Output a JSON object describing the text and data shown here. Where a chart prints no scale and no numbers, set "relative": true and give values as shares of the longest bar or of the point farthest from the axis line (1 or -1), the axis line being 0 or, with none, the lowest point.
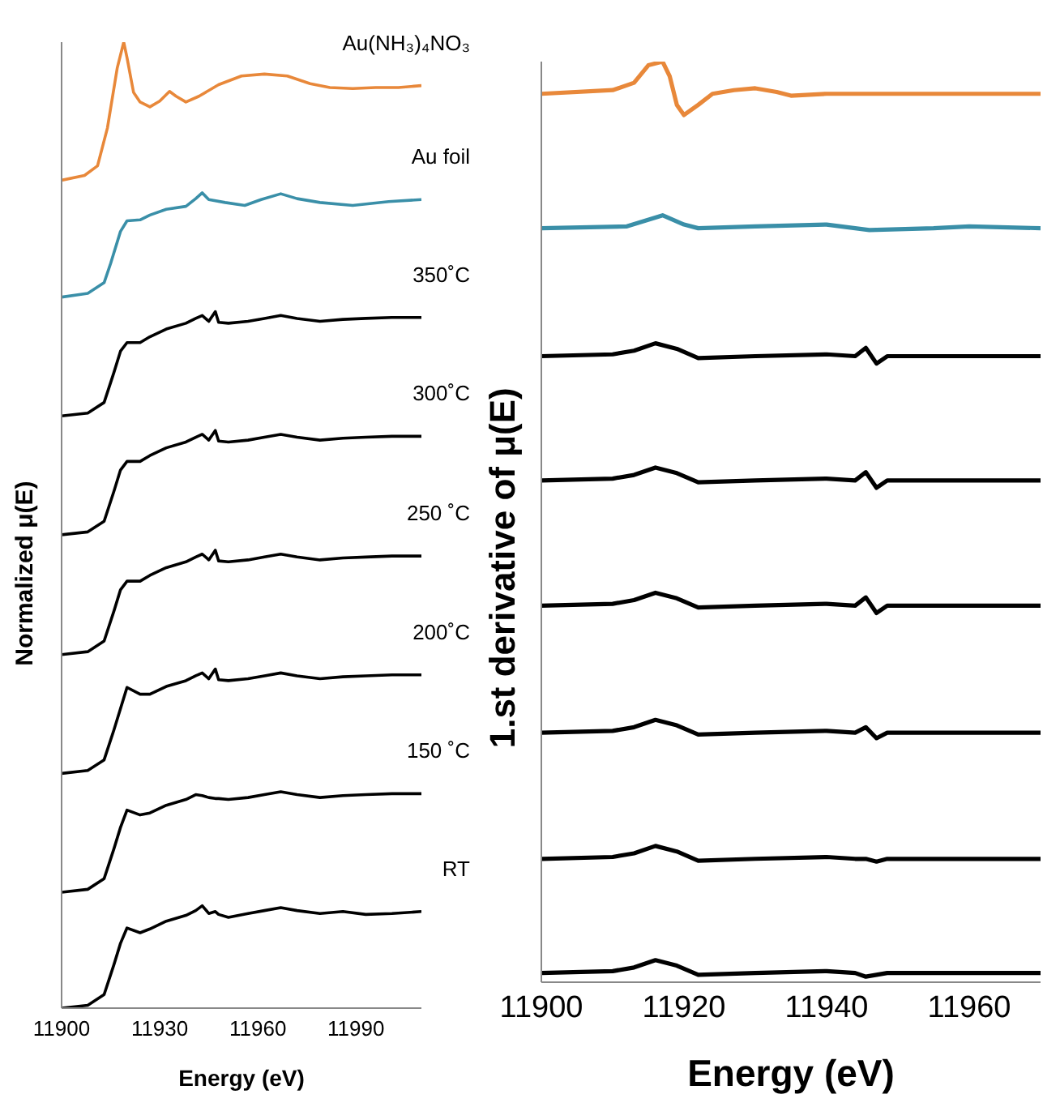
{
  "chart_data": [
    {
      "type": "line",
      "xlabel": "Energy (eV)",
      "ylabel": "Normalized μ(E)",
      "relative": true,
      "xlim": [
        11900,
        12010
      ],
      "xticks": [
        11900,
        11930,
        11960,
        11990
      ],
      "grid": false,
      "legend": false,
      "marker": "none",
      "line_style": "solid",
      "series": [
        {
          "name": "Au(NH₃)₄NO₃",
          "color": "#e8883a",
          "x": [
            11900,
            11907,
            11911,
            11914,
            11917,
            11919,
            11920,
            11922,
            11924,
            11927,
            11930,
            11933,
            11935,
            11938,
            11942,
            11948,
            11955,
            11962,
            11969,
            11976,
            11982,
            11989,
            11996,
            12003,
            12010
          ],
          "values": [
            0.857,
            0.862,
            0.872,
            0.911,
            0.973,
            1,
            0.984,
            0.948,
            0.938,
            0.933,
            0.939,
            0.949,
            0.944,
            0.938,
            0.944,
            0.956,
            0.965,
            0.967,
            0.965,
            0.957,
            0.953,
            0.952,
            0.953,
            0.953,
            0.955
          ]
        },
        {
          "name": "Au foil",
          "color": "#3a8fa8",
          "x": [
            11900,
            11908,
            11913,
            11915,
            11918,
            11920,
            11924,
            11927,
            11932,
            11938,
            11941,
            11943,
            11945,
            11950,
            11956,
            11961,
            11967,
            11972,
            11979,
            11989,
            12000,
            12010
          ],
          "values": [
            0.736,
            0.74,
            0.751,
            0.771,
            0.804,
            0.815,
            0.816,
            0.821,
            0.827,
            0.83,
            0.838,
            0.844,
            0.837,
            0.834,
            0.831,
            0.837,
            0.843,
            0.838,
            0.834,
            0.831,
            0.835,
            0.837
          ]
        },
        {
          "name": "350˚C",
          "color": "#000000",
          "x": [
            11900,
            11908,
            11913,
            11916,
            11918,
            11920,
            11924,
            11927,
            11932,
            11938,
            11941,
            11943,
            11945,
            11947,
            11948,
            11951,
            11957,
            11962,
            11967,
            11972,
            11979,
            11986,
            11993,
            12001,
            12010
          ],
          "values": [
            0.613,
            0.616,
            0.627,
            0.658,
            0.68,
            0.689,
            0.689,
            0.695,
            0.703,
            0.709,
            0.714,
            0.717,
            0.711,
            0.721,
            0.71,
            0.709,
            0.711,
            0.714,
            0.717,
            0.714,
            0.711,
            0.713,
            0.714,
            0.715,
            0.715
          ]
        },
        {
          "name": "300˚C",
          "color": "#000000",
          "x": [
            11900,
            11908,
            11913,
            11916,
            11918,
            11920,
            11924,
            11927,
            11932,
            11938,
            11941,
            11943,
            11945,
            11947,
            11948,
            11951,
            11957,
            11962,
            11967,
            11972,
            11979,
            11986,
            11993,
            12001,
            12010
          ],
          "values": [
            0.49,
            0.493,
            0.504,
            0.535,
            0.557,
            0.566,
            0.566,
            0.572,
            0.58,
            0.586,
            0.591,
            0.594,
            0.588,
            0.598,
            0.587,
            0.586,
            0.588,
            0.591,
            0.594,
            0.591,
            0.588,
            0.59,
            0.591,
            0.592,
            0.592
          ]
        },
        {
          "name": "250 ˚C",
          "color": "#000000",
          "x": [
            11900,
            11908,
            11913,
            11916,
            11918,
            11920,
            11924,
            11927,
            11932,
            11938,
            11941,
            11943,
            11945,
            11947,
            11948,
            11951,
            11957,
            11962,
            11967,
            11972,
            11979,
            11986,
            11993,
            12001,
            12010
          ],
          "values": [
            0.366,
            0.369,
            0.38,
            0.411,
            0.433,
            0.442,
            0.442,
            0.448,
            0.456,
            0.462,
            0.467,
            0.47,
            0.464,
            0.474,
            0.463,
            0.462,
            0.464,
            0.467,
            0.47,
            0.467,
            0.464,
            0.466,
            0.467,
            0.468,
            0.468
          ]
        },
        {
          "name": "200˚C",
          "color": "#000000",
          "x": [
            11900,
            11908,
            11913,
            11916,
            11918,
            11920,
            11924,
            11927,
            11932,
            11938,
            11941,
            11943,
            11945,
            11947,
            11948,
            11951,
            11957,
            11962,
            11967,
            11972,
            11979,
            11986,
            11993,
            12001,
            12010
          ],
          "values": [
            0.243,
            0.246,
            0.257,
            0.288,
            0.31,
            0.332,
            0.325,
            0.325,
            0.333,
            0.339,
            0.344,
            0.347,
            0.341,
            0.351,
            0.34,
            0.339,
            0.341,
            0.344,
            0.347,
            0.344,
            0.341,
            0.343,
            0.344,
            0.345,
            0.345
          ]
        },
        {
          "name": "150 ˚C",
          "color": "#000000",
          "x": [
            11900,
            11908,
            11913,
            11916,
            11918,
            11920,
            11924,
            11927,
            11932,
            11938,
            11941,
            11943,
            11945,
            11947,
            11948,
            11951,
            11957,
            11962,
            11967,
            11972,
            11979,
            11986,
            11993,
            12001,
            12010
          ],
          "values": [
            0.12,
            0.123,
            0.134,
            0.165,
            0.187,
            0.205,
            0.2,
            0.202,
            0.21,
            0.216,
            0.221,
            0.22,
            0.218,
            0.217,
            0.217,
            0.216,
            0.218,
            0.221,
            0.224,
            0.221,
            0.218,
            0.22,
            0.221,
            0.222,
            0.222
          ]
        },
        {
          "name": "RT",
          "color": "#000000",
          "x": [
            11900,
            11908,
            11913,
            11916,
            11918,
            11920,
            11924,
            11927,
            11932,
            11938,
            11941,
            11943,
            11945,
            11947,
            11948,
            11951,
            11957,
            11962,
            11967,
            11972,
            11979,
            11986,
            11993,
            12001,
            12010
          ],
          "values": [
            0,
            0.003,
            0.014,
            0.045,
            0.067,
            0.083,
            0.078,
            0.082,
            0.09,
            0.096,
            0.101,
            0.106,
            0.098,
            0.1,
            0.097,
            0.094,
            0.098,
            0.101,
            0.104,
            0.101,
            0.098,
            0.1,
            0.097,
            0.098,
            0.1
          ]
        }
      ]
    },
    {
      "type": "line",
      "xlabel": "Energy (eV)",
      "ylabel": "1.st derivative of μ(E)",
      "relative": true,
      "xlim": [
        11900,
        11970
      ],
      "xticks": [
        11900,
        11920,
        11940,
        11960
      ],
      "grid": false,
      "legend": false,
      "marker": "none",
      "line_style": "solid",
      "series": [
        {
          "color": "#e8883a",
          "x": [
            11900,
            11910,
            11913,
            11915,
            11917,
            11918,
            11919,
            11920,
            11922,
            11924,
            11927,
            11930,
            11933,
            11935,
            11940,
            11950,
            11960,
            11970
          ],
          "values": [
            0.965,
            0.969,
            0.977,
            0.996,
            1,
            0.984,
            0.953,
            0.942,
            0.953,
            0.965,
            0.969,
            0.971,
            0.967,
            0.963,
            0.965,
            0.965,
            0.965,
            0.965
          ]
        },
        {
          "color": "#3a8fa8",
          "x": [
            11900,
            11912,
            11917,
            11920,
            11922,
            11930,
            11940,
            11946,
            11955,
            11960,
            11970
          ],
          "values": [
            0.819,
            0.821,
            0.833,
            0.823,
            0.819,
            0.821,
            0.823,
            0.817,
            0.819,
            0.821,
            0.819
          ]
        },
        {
          "color": "#000000",
          "x": [
            11900,
            11910,
            11913,
            11916,
            11919,
            11922,
            11930,
            11940,
            11944,
            11945.5,
            11947,
            11948.5,
            11960,
            11970
          ],
          "values": [
            0.68,
            0.682,
            0.686,
            0.694,
            0.688,
            0.678,
            0.68,
            0.682,
            0.68,
            0.689,
            0.672,
            0.68,
            0.68,
            0.68
          ]
        },
        {
          "color": "#000000",
          "x": [
            11900,
            11910,
            11913,
            11916,
            11919,
            11922,
            11930,
            11940,
            11944,
            11945.5,
            11947,
            11948.5,
            11960,
            11970
          ],
          "values": [
            0.545,
            0.547,
            0.551,
            0.559,
            0.553,
            0.543,
            0.545,
            0.547,
            0.545,
            0.554,
            0.537,
            0.545,
            0.545,
            0.545
          ]
        },
        {
          "color": "#000000",
          "x": [
            11900,
            11910,
            11913,
            11916,
            11919,
            11922,
            11930,
            11940,
            11944,
            11945.5,
            11947,
            11948.5,
            11960,
            11970
          ],
          "values": [
            0.409,
            0.411,
            0.415,
            0.423,
            0.417,
            0.407,
            0.409,
            0.411,
            0.409,
            0.418,
            0.401,
            0.409,
            0.409,
            0.409
          ]
        },
        {
          "color": "#000000",
          "x": [
            11900,
            11910,
            11913,
            11916,
            11919,
            11922,
            11930,
            11940,
            11944,
            11945.5,
            11947,
            11948.5,
            11960,
            11970
          ],
          "values": [
            0.271,
            0.273,
            0.277,
            0.285,
            0.279,
            0.269,
            0.271,
            0.273,
            0.271,
            0.277,
            0.265,
            0.271,
            0.271,
            0.271
          ]
        },
        {
          "color": "#000000",
          "x": [
            11900,
            11910,
            11913,
            11916,
            11919,
            11922,
            11930,
            11940,
            11944,
            11945.5,
            11947,
            11948.5,
            11960,
            11970
          ],
          "values": [
            0.134,
            0.136,
            0.14,
            0.148,
            0.142,
            0.132,
            0.134,
            0.136,
            0.134,
            0.134,
            0.131,
            0.134,
            0.134,
            0.134
          ]
        },
        {
          "color": "#000000",
          "x": [
            11900,
            11910,
            11913,
            11916,
            11919,
            11922,
            11930,
            11940,
            11944,
            11945.5,
            11947,
            11948.5,
            11960,
            11970
          ],
          "values": [
            0.01,
            0.012,
            0.016,
            0.024,
            0.018,
            0.008,
            0.01,
            0.012,
            0.01,
            0.006,
            0.008,
            0.01,
            0.01,
            0.01
          ]
        }
      ]
    }
  ]
}
